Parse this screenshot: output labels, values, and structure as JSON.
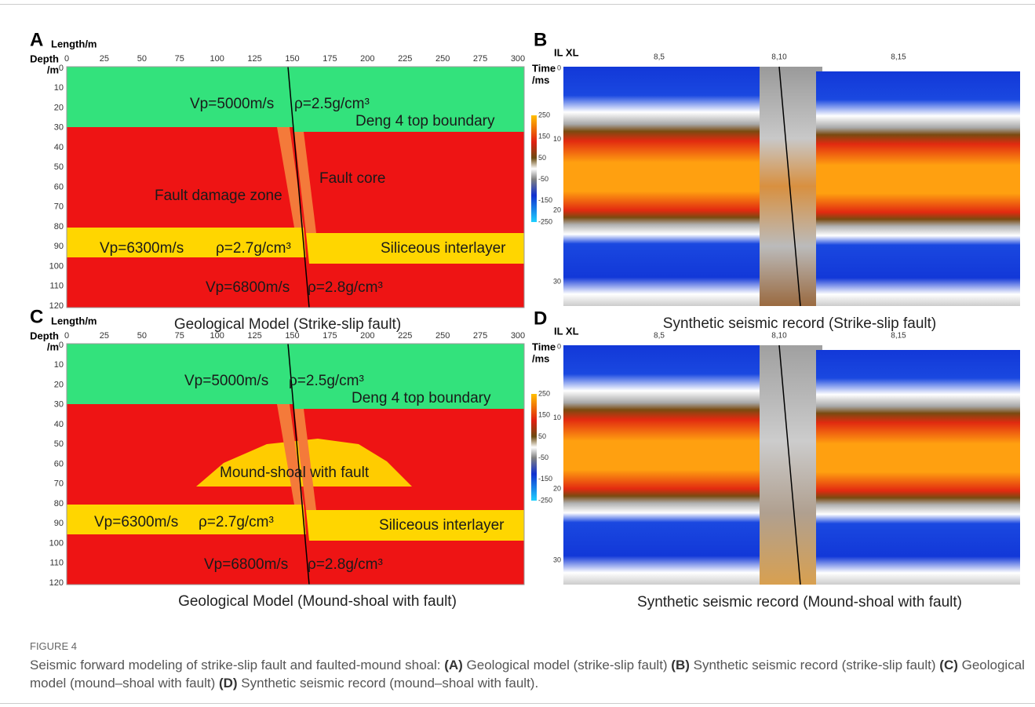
{
  "panels": [
    {
      "label": "A",
      "x_axis_title": "Length/m",
      "y_axis_title": [
        "Depth",
        "/m"
      ],
      "xticks": [
        0,
        25,
        50,
        75,
        100,
        125,
        150,
        175,
        200,
        225,
        250,
        275,
        300
      ],
      "yticks": [
        0,
        10,
        20,
        30,
        40,
        50,
        60,
        70,
        80,
        90,
        100,
        110,
        120
      ],
      "annotations": [
        "Vp=5000m/s",
        "ρ=2.5g/cm³",
        "Deng 4 top boundary",
        "Fault core",
        "Fault damage zone",
        "Vp=6300m/s",
        "ρ=2.7g/cm³",
        "Siliceous interlayer",
        "Vp=6800m/s",
        "ρ=2.8g/cm³"
      ],
      "caption": "Geological Model (Strike-slip fault)"
    },
    {
      "label": "B",
      "x_axis_title": "IL XL",
      "xticks": [
        "8,5",
        "8,10",
        "8,15"
      ],
      "y_axis_title": [
        "Time",
        "/ms"
      ],
      "yticks": [
        0,
        10,
        20,
        30
      ],
      "colorbar_ticks": [
        250,
        150,
        50,
        -50,
        -150,
        -250
      ],
      "caption": "Synthetic seismic record (Strike-slip fault)"
    },
    {
      "label": "C",
      "x_axis_title": "Length/m",
      "y_axis_title": [
        "Depth",
        "/m"
      ],
      "xticks": [
        0,
        25,
        50,
        75,
        100,
        125,
        150,
        175,
        200,
        225,
        250,
        275,
        300
      ],
      "yticks": [
        0,
        10,
        20,
        30,
        40,
        50,
        60,
        70,
        80,
        90,
        100,
        110,
        120
      ],
      "annotations": [
        "Vp=5000m/s",
        "ρ=2.5g/cm³",
        "Deng 4 top boundary",
        "Mound-shoal with fault",
        "Vp=6300m/s",
        "ρ=2.7g/cm³",
        "Siliceous interlayer",
        "Vp=6800m/s",
        "ρ=2.8g/cm³"
      ],
      "caption": "Geological Model (Mound-shoal with fault)"
    },
    {
      "label": "D",
      "x_axis_title": "IL XL",
      "xticks": [
        "8,5",
        "8,10",
        "8,15"
      ],
      "y_axis_title": [
        "Time",
        "/ms"
      ],
      "yticks": [
        0,
        10,
        20,
        30
      ],
      "colorbar_ticks": [
        250,
        150,
        50,
        -50,
        -150,
        -250
      ],
      "caption": "Synthetic seismic record (Mound-shoal with fault)"
    }
  ],
  "figure_caption": {
    "label": "FIGURE 4",
    "segments": [
      {
        "text": "Seismic forward modeling of strike-slip fault and faulted-mound shoal: ",
        "bold": false
      },
      {
        "text": "(A)",
        "bold": true
      },
      {
        "text": " Geological model (strike-slip fault) ",
        "bold": false
      },
      {
        "text": "(B)",
        "bold": true
      },
      {
        "text": " Synthetic seismic record (strike-slip fault) ",
        "bold": false
      },
      {
        "text": "(C)",
        "bold": true
      },
      {
        "text": " Geological model (mound–shoal with fault) ",
        "bold": false
      },
      {
        "text": "(D)",
        "bold": true
      },
      {
        "text": " Synthetic seismic record (mound–shoal with fault).",
        "bold": false
      }
    ]
  }
}
